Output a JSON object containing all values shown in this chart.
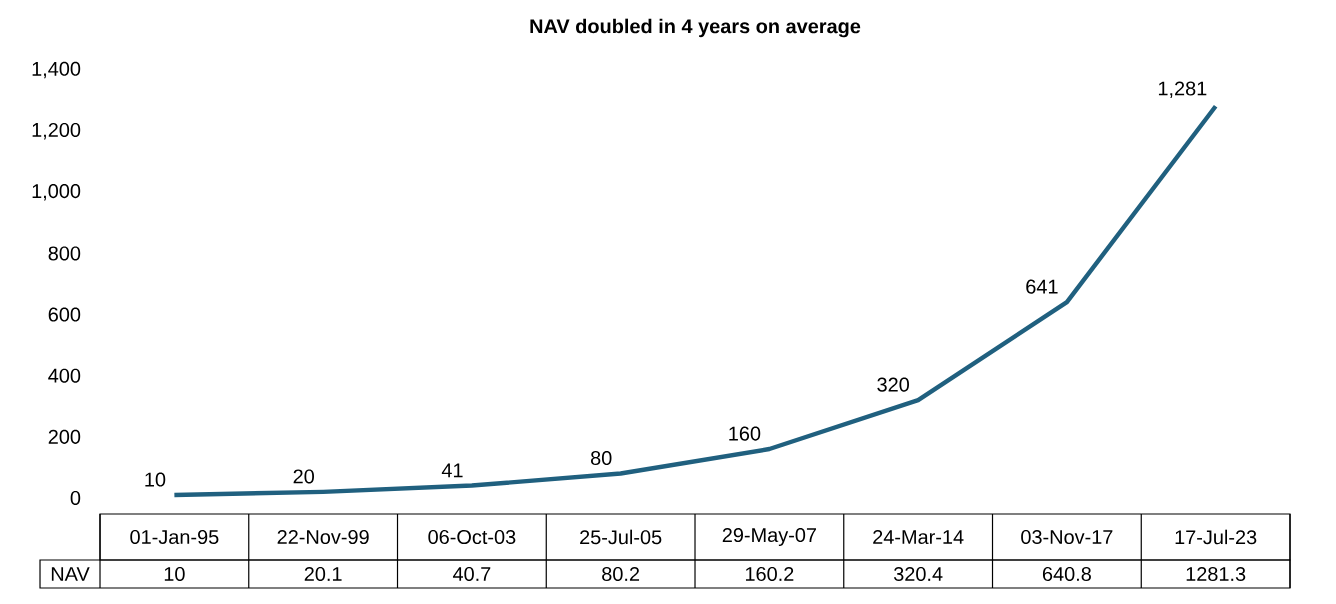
{
  "chart_data": {
    "type": "line",
    "title": "NAV doubled in 4 years on average",
    "categories": [
      "01-Jan-95",
      "22-Nov-99",
      "06-Oct-03",
      "25-Jul-05",
      "29-May-07",
      "24-Mar-14",
      "03-Nov-17",
      "17-Jul-23"
    ],
    "series": [
      {
        "name": "NAV",
        "color": "#20607f",
        "values": [
          10,
          20.1,
          40.7,
          80.2,
          160.2,
          320.4,
          640.8,
          1281.3
        ],
        "value_labels": [
          "10",
          "20.1",
          "40.7",
          "80.2",
          "160.2",
          "320.4",
          "640.8",
          "1281.3"
        ]
      }
    ],
    "annotations": [
      {
        "text": "10",
        "x": "01-Jan-95",
        "y": 10
      },
      {
        "text": "20",
        "x": "22-Nov-99",
        "y": 20.1
      },
      {
        "text": "41",
        "x": "06-Oct-03",
        "y": 40.7
      },
      {
        "text": "80",
        "x": "25-Jul-05",
        "y": 80.2
      },
      {
        "text": "160",
        "x": "29-May-07",
        "y": 160.2
      },
      {
        "text": "320",
        "x": "24-Mar-14",
        "y": 320.4
      },
      {
        "text": "641",
        "x": "03-Nov-17",
        "y": 640.8
      },
      {
        "text": "1,281",
        "x": "17-Jul-23",
        "y": 1281.3
      }
    ],
    "ylim": [
      0,
      1400
    ],
    "yticks": [
      0,
      200,
      400,
      600,
      800,
      {
        "value": 1000,
        "label": "1,000"
      },
      {
        "value": 1200,
        "label": "1,200"
      },
      {
        "value": 1400,
        "label": "1,400"
      }
    ]
  }
}
